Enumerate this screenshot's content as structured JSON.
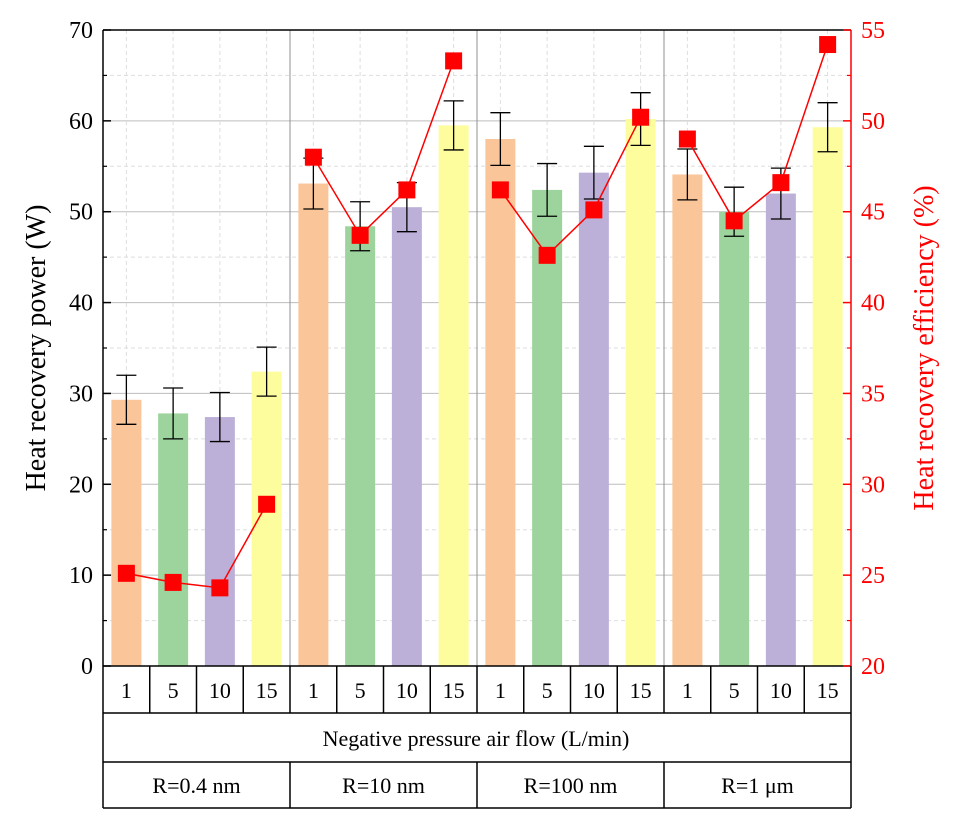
{
  "chart_data": {
    "type": "bar",
    "title": "",
    "ylabel": "Heat recovery power (W)",
    "y2label": "Heat recovery efficiency (%)",
    "ylim": [
      0,
      70
    ],
    "y2lim": [
      20,
      55
    ],
    "yticks": [
      "0",
      "10",
      "20",
      "30",
      "40",
      "50",
      "60",
      "70"
    ],
    "y2ticks": [
      "20",
      "25",
      "30",
      "35",
      "40",
      "45",
      "50",
      "55"
    ],
    "xlabel": "Negative pressure air flow (L/min)",
    "grid": true,
    "colors": {
      "flow_1": "#f9c599",
      "flow_5": "#9dd49d",
      "flow_10": "#bdb0d8",
      "flow_15": "#fdfd9d",
      "efficiency": "#ff0000",
      "axis": "#000000"
    },
    "flow_labels": [
      "1",
      "5",
      "10",
      "15"
    ],
    "groups": [
      {
        "label": "R=0.4 nm",
        "categories": [
          "1",
          "5",
          "10",
          "15"
        ],
        "power": [
          29.3,
          27.8,
          27.4,
          32.4
        ],
        "power_error": [
          2.7,
          2.8,
          2.7,
          2.7
        ],
        "efficiency": [
          25.1,
          24.6,
          24.3,
          28.9
        ]
      },
      {
        "label": "R=10 nm",
        "categories": [
          "1",
          "5",
          "10",
          "15"
        ],
        "power": [
          53.1,
          48.4,
          50.5,
          59.5
        ],
        "power_error": [
          2.8,
          2.7,
          2.7,
          2.7
        ],
        "efficiency": [
          48.0,
          43.7,
          46.2,
          53.3
        ]
      },
      {
        "label": "R=100 nm",
        "categories": [
          "1",
          "5",
          "10",
          "15"
        ],
        "power": [
          58.0,
          52.4,
          54.3,
          60.2
        ],
        "power_error": [
          2.9,
          2.9,
          2.9,
          2.9
        ],
        "efficiency": [
          46.2,
          42.6,
          45.1,
          50.2
        ]
      },
      {
        "label": "R=1 μm",
        "categories": [
          "1",
          "5",
          "10",
          "15"
        ],
        "power": [
          54.1,
          50.0,
          52.0,
          59.3
        ],
        "power_error": [
          2.8,
          2.7,
          2.8,
          2.7
        ],
        "efficiency": [
          49.0,
          44.5,
          46.6,
          54.2
        ]
      }
    ]
  }
}
